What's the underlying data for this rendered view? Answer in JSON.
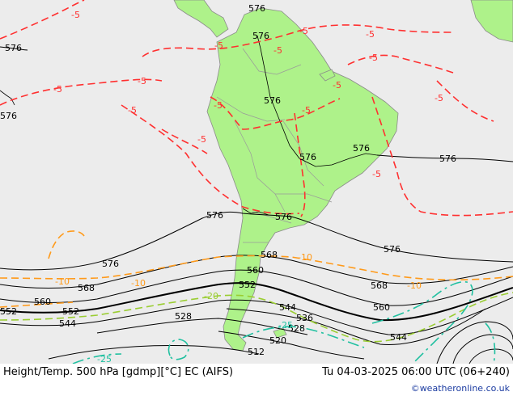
{
  "footer": {
    "title_left": "Height/Temp. 500 hPa [gdmp][°C] EC (AIFS)",
    "title_right": "Tu 04-03-2025 06:00 UTC (06+240)",
    "credit": "©weatheronline.co.uk"
  },
  "colors": {
    "ocean": "#ececec",
    "land": "#aef28a",
    "border": "#a0a0a0",
    "height_line": "#000000",
    "temp_m5": "#ff3030",
    "temp_m10": "#ff9a1a",
    "temp_m20": "#9acd32",
    "temp_m25": "#20c0a0"
  },
  "height_labels": [
    "576",
    "576",
    "576",
    "576",
    "576",
    "576",
    "576",
    "576",
    "576",
    "576",
    "576",
    "576",
    "568",
    "568",
    "568",
    "560",
    "560",
    "560",
    "552",
    "552",
    "552",
    "544",
    "544",
    "544",
    "536",
    "528",
    "528",
    "520",
    "512"
  ],
  "temp_labels": [
    "-5",
    "-5",
    "-5",
    "-5",
    "-5",
    "-5",
    "-5",
    "-5",
    "-5",
    "-5",
    "-5",
    "-5",
    "-5",
    "-5",
    "-5",
    "-10",
    "-10",
    "-10",
    "-10",
    "-20",
    "-25",
    "-25"
  ]
}
